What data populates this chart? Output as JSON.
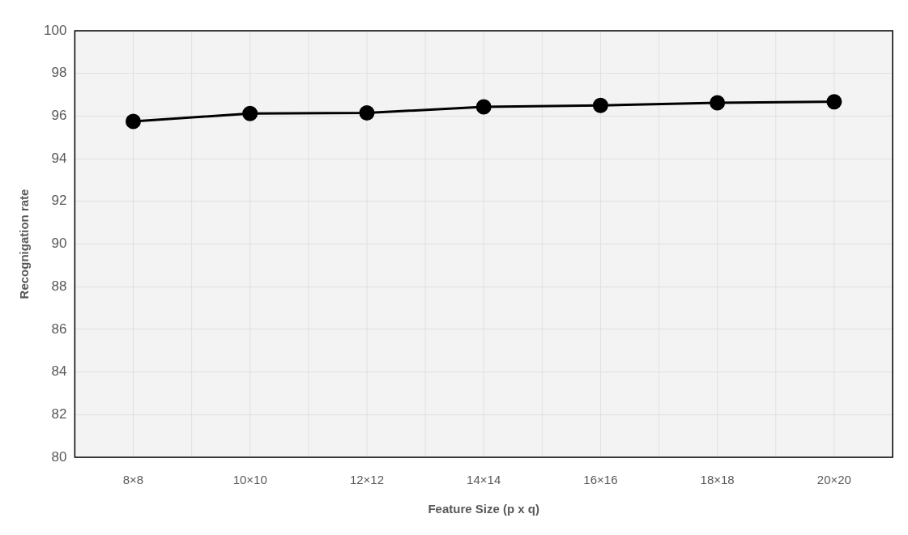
{
  "chart_data": {
    "type": "line",
    "xlabel": "Feature Size (p x q)",
    "ylabel": "Recognigation rate",
    "categories": [
      "8×8",
      "10×10",
      "12×12",
      "14×14",
      "16×16",
      "18×18",
      "20×20"
    ],
    "series": [
      {
        "color": "#000000",
        "values": [
          95.75,
          96.12,
          96.15,
          96.43,
          96.5,
          96.62,
          96.67
        ]
      }
    ],
    "ylim": [
      80,
      100
    ],
    "yticks": [
      80,
      82,
      84,
      86,
      88,
      90,
      92,
      94,
      96,
      98,
      100
    ],
    "grid": true,
    "marker": "circle",
    "line_style": "solid",
    "legend": false
  }
}
